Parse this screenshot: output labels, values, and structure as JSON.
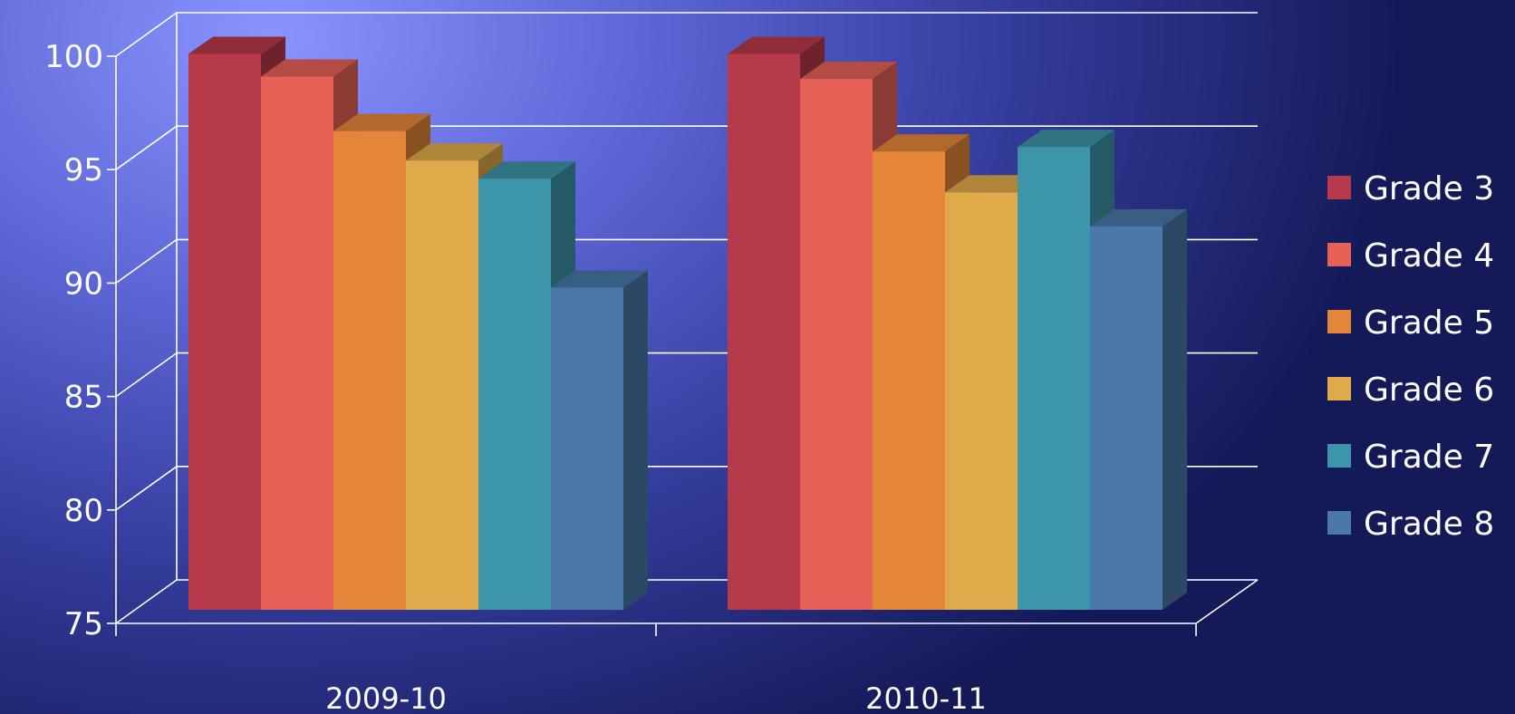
{
  "chart_data": {
    "type": "bar",
    "title": "",
    "xlabel": "",
    "ylabel": "",
    "ylim": [
      75,
      100
    ],
    "yticks": [
      75,
      80,
      85,
      90,
      95,
      100
    ],
    "grid": true,
    "legend_position": "right",
    "categories": [
      "2009-10",
      "2010-11"
    ],
    "series": [
      {
        "name": "Grade 3",
        "color": "#b73a4a",
        "values": [
          99.5,
          99.5
        ]
      },
      {
        "name": "Grade 4",
        "color": "#e66257",
        "values": [
          98.5,
          98.4
        ]
      },
      {
        "name": "Grade 5",
        "color": "#e58538",
        "values": [
          96.1,
          95.2
        ]
      },
      {
        "name": "Grade 6",
        "color": "#e0aa4a",
        "values": [
          94.8,
          93.4
        ]
      },
      {
        "name": "Grade 7",
        "color": "#3d95a9",
        "values": [
          94.0,
          95.4
        ]
      },
      {
        "name": "Grade 8",
        "color": "#4a78a8",
        "values": [
          89.2,
          91.9
        ]
      }
    ]
  }
}
